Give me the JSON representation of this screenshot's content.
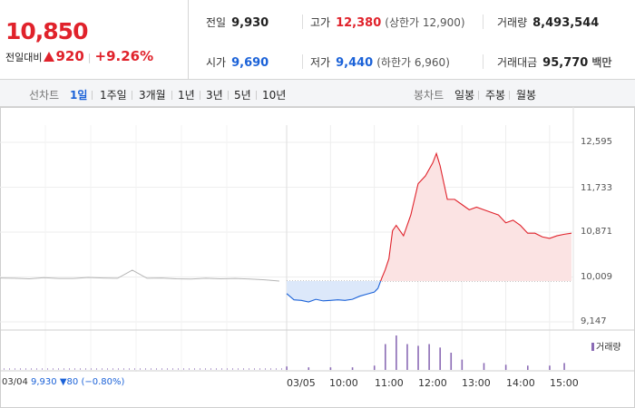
{
  "quote": {
    "price": "10,850",
    "change_label": "전일대비",
    "change_amount": "920",
    "change_percent": "+9.26%"
  },
  "stats": {
    "prev_close_label": "전일",
    "prev_close": "9,930",
    "open_label": "시가",
    "open": "9,690",
    "high_label": "고가",
    "high": "12,380",
    "upper_limit": "(상한가 12,900)",
    "low_label": "저가",
    "low": "9,440",
    "lower_limit": "(하한가 6,960)",
    "volume_label": "거래량",
    "volume": "8,493,544",
    "amount_label": "거래대금",
    "amount": "95,770",
    "amount_unit": "백만"
  },
  "period_tabs": {
    "label": "선차트",
    "items": [
      "1일",
      "1주일",
      "3개월",
      "1년",
      "3년",
      "5년",
      "10년"
    ],
    "active": "1일"
  },
  "candle_tabs": {
    "label": "봉차트",
    "items": [
      "일봉",
      "주봉",
      "월봉"
    ]
  },
  "colors": {
    "up": "#e0222b",
    "down": "#1b62d8",
    "prev": "#b5b5b5",
    "volume": "#8b6bb5"
  },
  "chart_data": {
    "type": "line",
    "y_ticks": [
      "12,595",
      "11,733",
      "10,871",
      "10,009",
      "9,147"
    ],
    "ylim": [
      9147,
      12595
    ],
    "baseline": 9930,
    "x_ticks": [
      "03/04",
      "03/05",
      "10:00",
      "11:00",
      "12:00",
      "13:00",
      "14:00",
      "15:00"
    ],
    "series": [
      {
        "name": "03/04",
        "x": [
          "09:00",
          "09:20",
          "09:40",
          "10:00",
          "10:20",
          "10:40",
          "11:00",
          "11:20",
          "11:40",
          "12:00",
          "12:20",
          "12:40",
          "13:00",
          "13:20",
          "13:40",
          "14:00",
          "14:20",
          "14:40",
          "15:00",
          "15:20"
        ],
        "values": [
          9990,
          9985,
          9975,
          9995,
          9980,
          9980,
          10000,
          9990,
          9985,
          10140,
          9985,
          9990,
          9975,
          9970,
          9985,
          9975,
          9980,
          9970,
          9955,
          9930
        ]
      },
      {
        "name": "03/05",
        "x": [
          "09:00",
          "09:10",
          "09:20",
          "09:30",
          "09:40",
          "09:50",
          "10:00",
          "10:10",
          "10:20",
          "10:30",
          "10:40",
          "10:50",
          "11:00",
          "11:05",
          "11:10",
          "11:15",
          "11:20",
          "11:25",
          "11:30",
          "11:40",
          "11:50",
          "12:00",
          "12:10",
          "12:20",
          "12:25",
          "12:30",
          "12:40",
          "12:50",
          "13:00",
          "13:10",
          "13:20",
          "13:30",
          "13:40",
          "13:50",
          "14:00",
          "14:10",
          "14:20",
          "14:30",
          "14:40",
          "14:50",
          "15:00",
          "15:10",
          "15:20",
          "15:30"
        ],
        "values": [
          9690,
          9570,
          9560,
          9530,
          9580,
          9550,
          9560,
          9570,
          9560,
          9580,
          9640,
          9680,
          9720,
          9790,
          9980,
          10150,
          10360,
          10900,
          11000,
          10800,
          11200,
          11800,
          11950,
          12200,
          12380,
          12150,
          11500,
          11500,
          11400,
          11300,
          11350,
          11300,
          11250,
          11200,
          11050,
          11100,
          11000,
          10850,
          10850,
          10780,
          10750,
          10800,
          10830,
          10850
        ]
      }
    ],
    "volume": {
      "name": "거래량",
      "x": [
        "09:00",
        "09:30",
        "10:00",
        "10:30",
        "11:00",
        "11:15",
        "11:30",
        "11:45",
        "12:00",
        "12:15",
        "12:30",
        "12:45",
        "13:00",
        "13:30",
        "14:00",
        "14:30",
        "15:00",
        "15:20"
      ],
      "values": [
        4,
        3,
        3,
        3,
        5,
        30,
        40,
        30,
        28,
        30,
        26,
        20,
        12,
        8,
        6,
        5,
        5,
        8
      ]
    },
    "info": {
      "date": "03/04",
      "value": "9,930",
      "change": "80",
      "percent": "(−0.80%)"
    }
  }
}
